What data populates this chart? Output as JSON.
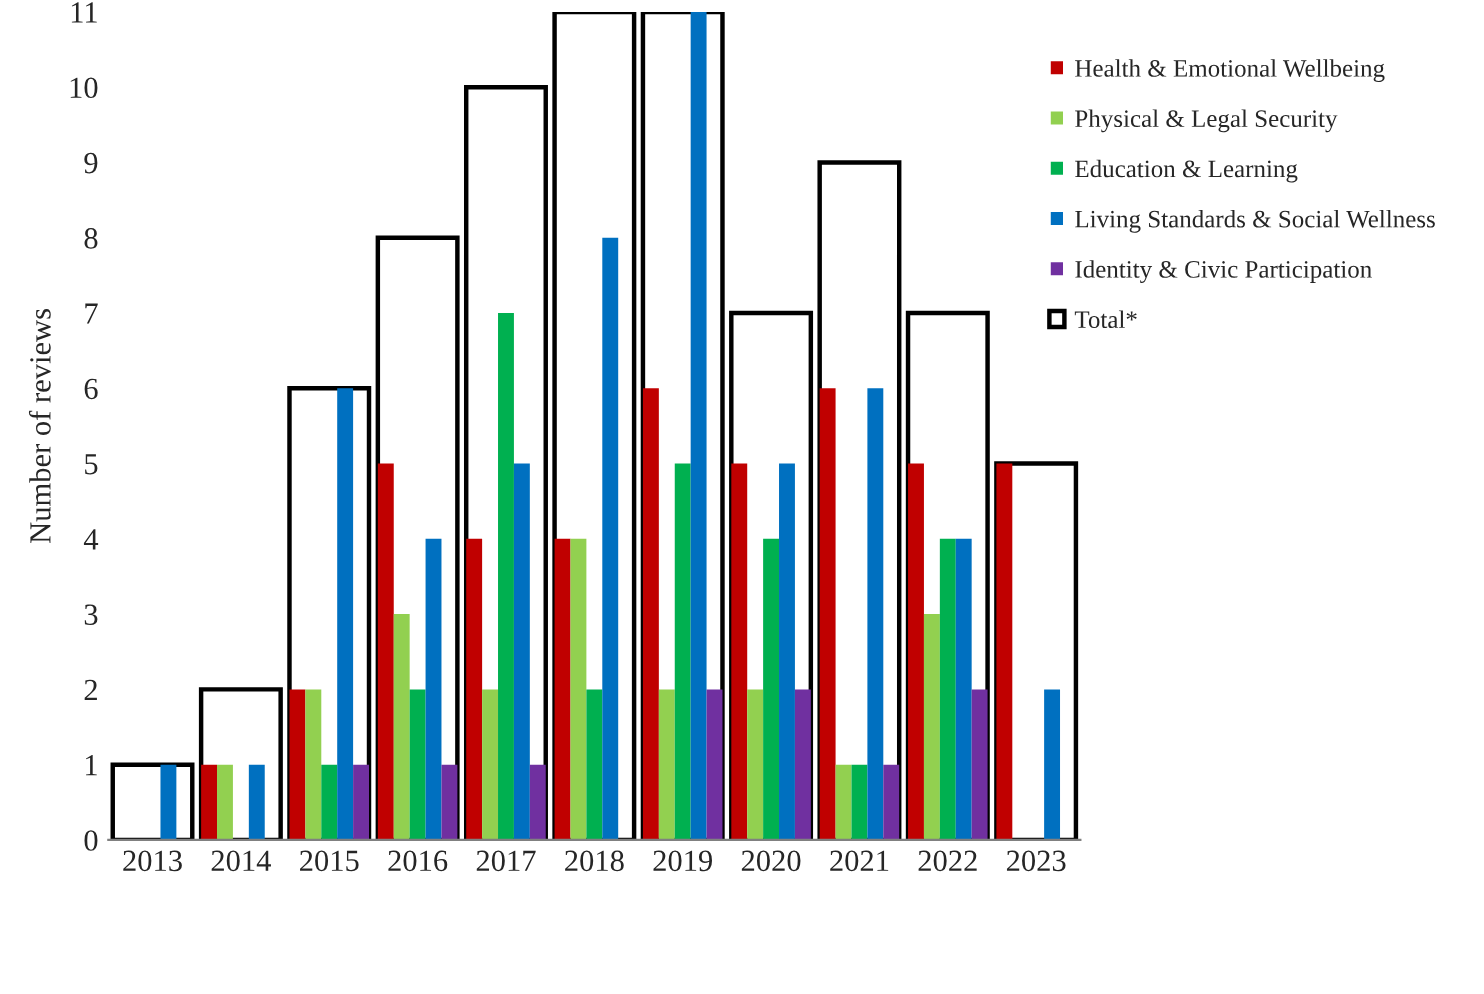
{
  "chart_data": {
    "type": "bar",
    "ylabel": "Number of reviews",
    "categories": [
      "2013",
      "2014",
      "2015",
      "2016",
      "2017",
      "2018",
      "2019",
      "2020",
      "2021",
      "2022",
      "2023"
    ],
    "series": [
      {
        "name": "Health & Emotional Wellbeing",
        "color": "#c00000",
        "values": [
          0,
          1,
          2,
          5,
          4,
          4,
          6,
          5,
          6,
          5,
          5
        ]
      },
      {
        "name": "Physical & Legal Security",
        "color": "#92d050",
        "values": [
          0,
          1,
          2,
          3,
          2,
          4,
          2,
          2,
          1,
          3,
          0
        ]
      },
      {
        "name": "Education & Learning",
        "color": "#00b050",
        "values": [
          0,
          0,
          1,
          2,
          7,
          2,
          5,
          4,
          1,
          4,
          0
        ]
      },
      {
        "name": "Living Standards & Social Wellness",
        "color": "#0070c0",
        "values": [
          1,
          1,
          6,
          4,
          5,
          8,
          11,
          5,
          6,
          4,
          2
        ]
      },
      {
        "name": "Identity & Civic Participation",
        "color": "#7030a0",
        "values": [
          0,
          0,
          1,
          1,
          1,
          0,
          2,
          2,
          1,
          2,
          0
        ]
      },
      {
        "name": "Total*",
        "line_style": "solid",
        "color": "#000000",
        "values": [
          1,
          2,
          6,
          8,
          10,
          11,
          11,
          7,
          9,
          7,
          5
        ]
      }
    ],
    "ylim": [
      0,
      11
    ],
    "yticks": [
      0,
      1,
      2,
      3,
      4,
      5,
      6,
      7,
      8,
      9,
      10,
      11
    ],
    "grid": false,
    "legend": "right"
  }
}
